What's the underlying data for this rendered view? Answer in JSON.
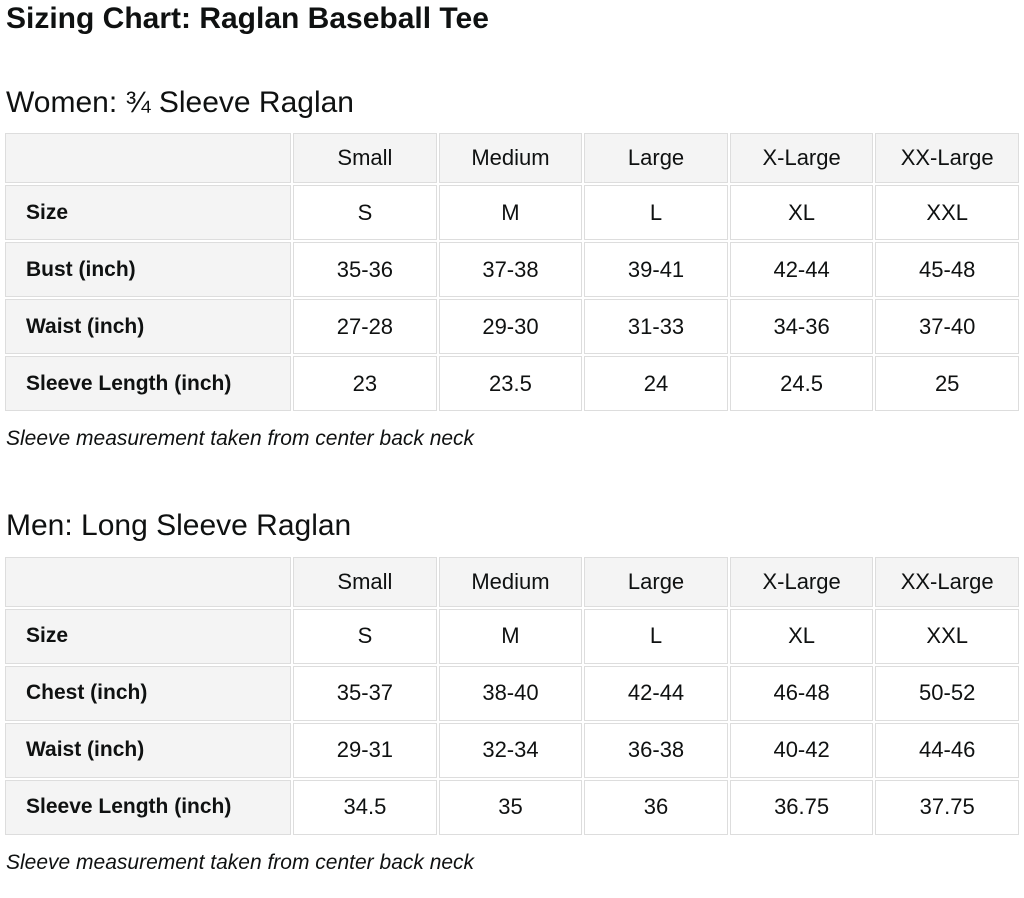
{
  "page": {
    "title": "Sizing Chart: Raglan Baseball Tee"
  },
  "colors": {
    "header_bg": "#f4f4f4",
    "cell_border": "#dddddd",
    "text": "#0f1111",
    "page_bg": "#ffffff"
  },
  "sections": [
    {
      "heading": "Women: ¾ Sleeve Raglan",
      "note": "Sleeve measurement taken from center back neck",
      "table": {
        "column_headers": [
          "",
          "Small",
          "Medium",
          "Large",
          "X-Large",
          "XX-Large"
        ],
        "rows": [
          {
            "label": "Size",
            "values": [
              "S",
              "M",
              "L",
              "XL",
              "XXL"
            ]
          },
          {
            "label": "Bust (inch)",
            "values": [
              "35-36",
              "37-38",
              "39-41",
              "42-44",
              "45-48"
            ]
          },
          {
            "label": "Waist (inch)",
            "values": [
              "27-28",
              "29-30",
              "31-33",
              "34-36",
              "37-40"
            ]
          },
          {
            "label": "Sleeve Length (inch)",
            "values": [
              "23",
              "23.5",
              "24",
              "24.5",
              "25"
            ]
          }
        ]
      }
    },
    {
      "heading": "Men: Long Sleeve Raglan",
      "note": "Sleeve measurement taken from center back neck",
      "table": {
        "column_headers": [
          "",
          "Small",
          "Medium",
          "Large",
          "X-Large",
          "XX-Large"
        ],
        "rows": [
          {
            "label": "Size",
            "values": [
              "S",
              "M",
              "L",
              "XL",
              "XXL"
            ]
          },
          {
            "label": "Chest (inch)",
            "values": [
              "35-37",
              "38-40",
              "42-44",
              "46-48",
              "50-52"
            ]
          },
          {
            "label": "Waist (inch)",
            "values": [
              "29-31",
              "32-34",
              "36-38",
              "40-42",
              "44-46"
            ]
          },
          {
            "label": "Sleeve Length (inch)",
            "values": [
              "34.5",
              "35",
              "36",
              "36.75",
              "37.75"
            ]
          }
        ]
      }
    }
  ]
}
